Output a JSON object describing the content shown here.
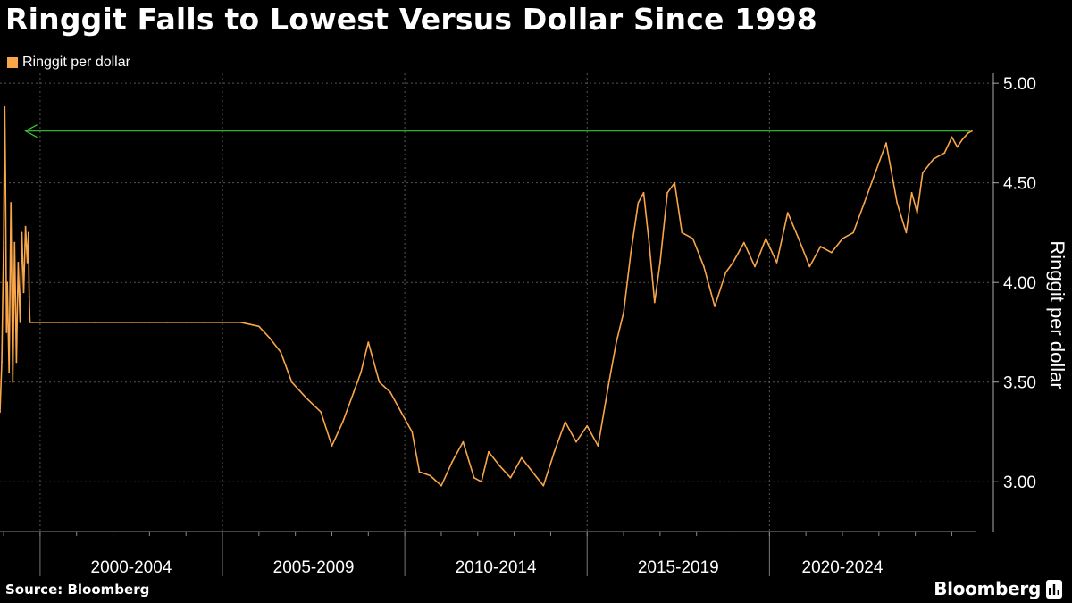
{
  "title": "Ringgit Falls to Lowest Versus Dollar Since 1998",
  "source": "Source: Bloomberg",
  "brand": "Bloomberg",
  "brand_icon": "bloomberg-terminal-icon",
  "colors": {
    "background": "#000000",
    "series": "#f9a64b",
    "arrow": "#39c734",
    "grid": "#555555",
    "text": "#ffffff"
  },
  "legend": {
    "label": "Ringgit per dollar"
  },
  "chart_data": {
    "type": "line",
    "title": "Ringgit Falls to Lowest Versus Dollar Since 1998",
    "ylabel": "Ringgit per dollar",
    "xlabel": "",
    "ylim": [
      2.75,
      5.05
    ],
    "yticks": [
      3.0,
      3.5,
      4.0,
      4.5,
      5.0
    ],
    "ytick_labels": [
      "3.00",
      "3.50",
      "4.00",
      "4.50",
      "5.00"
    ],
    "xlim": [
      1997.9,
      2024.65
    ],
    "period_boundaries": [
      1999.0,
      2004.0,
      2009.0,
      2014.0,
      2019.0
    ],
    "period_labels": [
      "2000-2004",
      "2005-2009",
      "2010-2014",
      "2015-2019",
      "2020-2024"
    ],
    "period_label_centers": [
      2001.5,
      2006.5,
      2011.5,
      2016.5,
      2021.0
    ],
    "reference_arrow": {
      "value": 4.76,
      "from_x": 2024.5,
      "to_x": 1998.6
    },
    "grid": true,
    "series": [
      {
        "name": "Ringgit per dollar",
        "x": [
          1997.9,
          1997.95,
          1998.0,
          1998.03,
          1998.05,
          1998.08,
          1998.1,
          1998.15,
          1998.2,
          1998.25,
          1998.3,
          1998.35,
          1998.4,
          1998.45,
          1998.5,
          1998.55,
          1998.6,
          1998.65,
          1998.68,
          1998.7,
          1998.72,
          1998.75,
          1998.8,
          1999.0,
          1999.5,
          2000.0,
          2000.5,
          2001.0,
          2001.5,
          2002.0,
          2002.5,
          2003.0,
          2003.5,
          2004.0,
          2004.5,
          2005.0,
          2005.3,
          2005.6,
          2005.9,
          2006.3,
          2006.7,
          2007.0,
          2007.3,
          2007.6,
          2007.8,
          2008.0,
          2008.3,
          2008.6,
          2008.9,
          2009.2,
          2009.4,
          2009.7,
          2010.0,
          2010.3,
          2010.6,
          2010.9,
          2011.1,
          2011.3,
          2011.6,
          2011.9,
          2012.2,
          2012.5,
          2012.8,
          2013.1,
          2013.4,
          2013.7,
          2014.0,
          2014.3,
          2014.6,
          2014.8,
          2015.0,
          2015.2,
          2015.4,
          2015.55,
          2015.7,
          2015.85,
          2016.0,
          2016.2,
          2016.4,
          2016.6,
          2016.9,
          2017.2,
          2017.5,
          2017.8,
          2018.0,
          2018.3,
          2018.6,
          2018.9,
          2019.2,
          2019.5,
          2019.8,
          2020.1,
          2020.4,
          2020.7,
          2021.0,
          2021.3,
          2021.6,
          2021.9,
          2022.2,
          2022.5,
          2022.75,
          2022.9,
          2023.05,
          2023.2,
          2023.5,
          2023.8,
          2024.0,
          2024.15,
          2024.3,
          2024.45,
          2024.55
        ],
        "values": [
          3.35,
          3.6,
          4.2,
          4.88,
          4.55,
          3.75,
          4.0,
          3.55,
          4.4,
          3.5,
          4.2,
          3.6,
          4.1,
          3.8,
          4.25,
          3.95,
          4.28,
          4.1,
          4.25,
          3.93,
          3.8,
          3.8,
          3.8,
          3.8,
          3.8,
          3.8,
          3.8,
          3.8,
          3.8,
          3.8,
          3.8,
          3.8,
          3.8,
          3.8,
          3.8,
          3.78,
          3.72,
          3.65,
          3.5,
          3.42,
          3.35,
          3.18,
          3.3,
          3.45,
          3.55,
          3.7,
          3.5,
          3.45,
          3.35,
          3.25,
          3.05,
          3.03,
          2.98,
          3.1,
          3.2,
          3.02,
          3.0,
          3.15,
          3.08,
          3.02,
          3.12,
          3.05,
          2.98,
          3.15,
          3.3,
          3.2,
          3.28,
          3.18,
          3.5,
          3.7,
          3.85,
          4.15,
          4.4,
          4.45,
          4.2,
          3.9,
          4.1,
          4.45,
          4.5,
          4.25,
          4.22,
          4.08,
          3.88,
          4.05,
          4.1,
          4.2,
          4.08,
          4.22,
          4.1,
          4.35,
          4.22,
          4.08,
          4.18,
          4.15,
          4.22,
          4.25,
          4.4,
          4.55,
          4.7,
          4.4,
          4.25,
          4.45,
          4.35,
          4.55,
          4.62,
          4.65,
          4.73,
          4.68,
          4.72,
          4.75,
          4.76
        ]
      }
    ]
  }
}
